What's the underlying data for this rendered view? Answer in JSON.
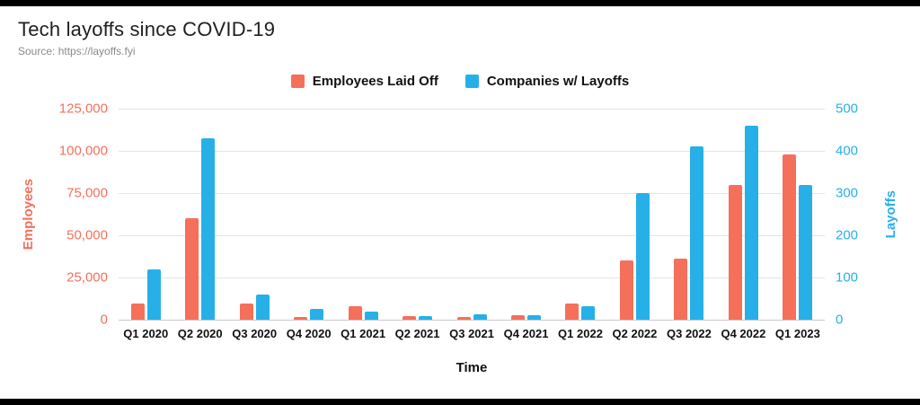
{
  "page": {
    "title": "Tech layoffs since COVID-19",
    "source": "Source: https://layoffs.fyi"
  },
  "legend": [
    {
      "label": "Employees Laid Off",
      "color": "#f4705b"
    },
    {
      "label": "Companies w/ Layoffs",
      "color": "#27b0e8"
    }
  ],
  "chart_data": {
    "type": "bar",
    "title": "Tech layoffs since COVID-19",
    "source": "Source: https://layoffs.fyi",
    "xlabel": "Time",
    "grid": true,
    "legend_position": "top",
    "left_axis": {
      "label": "Employees",
      "color": "#f4705b",
      "max": 125000,
      "ticks": [
        0,
        25000,
        50000,
        75000,
        100000,
        125000
      ],
      "tick_labels": [
        "0",
        "25,000",
        "50,000",
        "75,000",
        "100,000",
        "125,000"
      ]
    },
    "right_axis": {
      "label": "Layoffs",
      "color": "#27b0e8",
      "max": 500,
      "ticks": [
        0,
        100,
        200,
        300,
        400,
        500
      ],
      "tick_labels": [
        "0",
        "100",
        "200",
        "300",
        "400",
        "500"
      ]
    },
    "categories": [
      "Q1 2020",
      "Q2 2020",
      "Q3 2020",
      "Q4 2020",
      "Q1 2021",
      "Q2 2021",
      "Q3 2021",
      "Q4 2021",
      "Q1 2022",
      "Q2 2022",
      "Q3 2022",
      "Q4 2022",
      "Q1 2023"
    ],
    "series": [
      {
        "name": "Employees Laid Off",
        "axis": "left",
        "color": "#f4705b",
        "values": [
          9500,
          60000,
          9800,
          1500,
          8000,
          2000,
          1500,
          2500,
          9500,
          35000,
          36000,
          80000,
          98000
        ]
      },
      {
        "name": "Companies w/ Layoffs",
        "axis": "right",
        "color": "#27b0e8",
        "values": [
          120,
          430,
          60,
          25,
          20,
          8,
          12,
          10,
          32,
          300,
          410,
          460,
          320
        ]
      }
    ]
  }
}
